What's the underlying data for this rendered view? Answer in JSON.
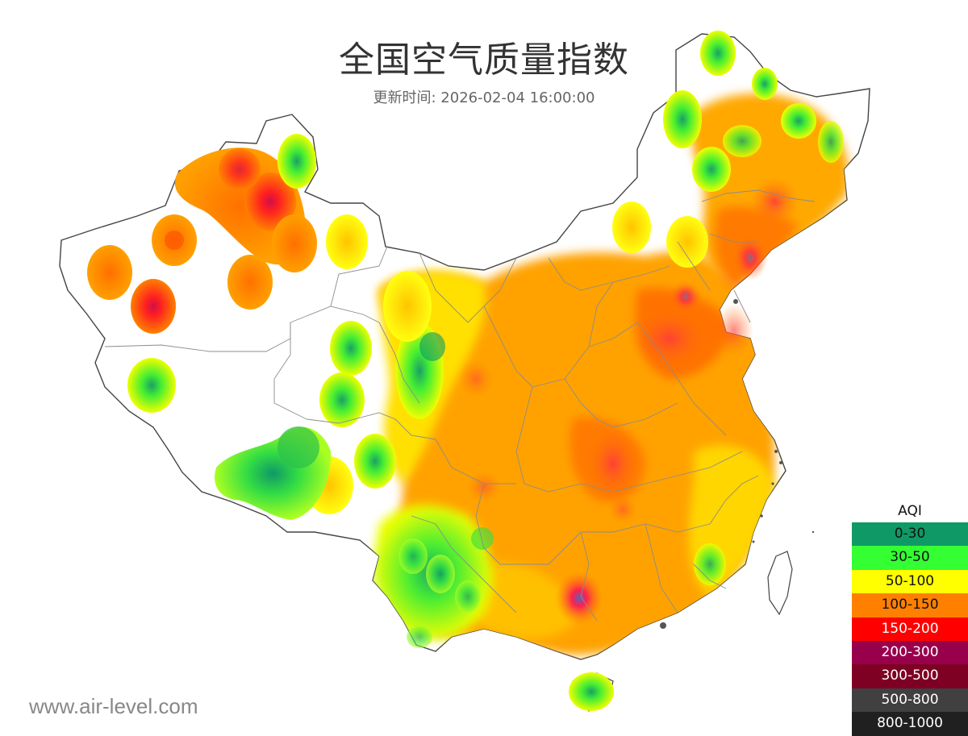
{
  "header": {
    "title": "全国空气质量指数",
    "updated": "更新时间: 2026-02-04 16:00:00"
  },
  "watermark": "www.air-level.com",
  "legend": {
    "title": "AQI",
    "items": [
      {
        "label": "0-30",
        "color": "#0f9966",
        "text": "#111111"
      },
      {
        "label": "30-50",
        "color": "#33ff33",
        "text": "#111111"
      },
      {
        "label": "50-100",
        "color": "#ffff00",
        "text": "#111111"
      },
      {
        "label": "100-150",
        "color": "#ff8000",
        "text": "#111111"
      },
      {
        "label": "150-200",
        "color": "#ff0000",
        "text": "#ffffff"
      },
      {
        "label": "200-300",
        "color": "#99004c",
        "text": "#ffffff"
      },
      {
        "label": "300-500",
        "color": "#7e0023",
        "text": "#ffffff"
      },
      {
        "label": "500-800",
        "color": "#404040",
        "text": "#ffffff"
      },
      {
        "label": "800-1000",
        "color": "#202020",
        "text": "#ffffff"
      }
    ]
  }
}
